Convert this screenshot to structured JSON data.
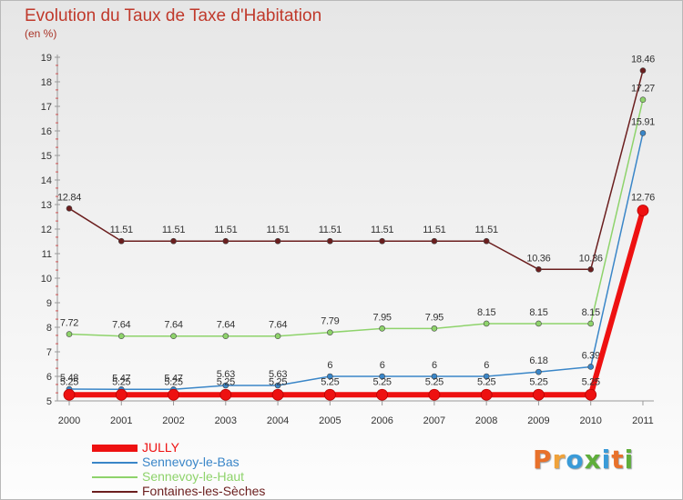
{
  "title": "Evolution du Taux de Taxe d'Habitation",
  "units_label": "(en %)",
  "chart_data": {
    "type": "line",
    "title": "Evolution du Taux de Taxe d'Habitation",
    "ylabel": "(en %)",
    "xlabel": "",
    "categories": [
      "2000",
      "2001",
      "2002",
      "2003",
      "2004",
      "2005",
      "2006",
      "2007",
      "2008",
      "2009",
      "2010",
      "2011"
    ],
    "ylim": [
      5,
      19
    ],
    "yticks": [
      5,
      6,
      7,
      8,
      9,
      10,
      11,
      12,
      13,
      14,
      15,
      16,
      17,
      18,
      19
    ],
    "grid": false,
    "series": [
      {
        "name": "Fontaines-les-Sèches",
        "color": "#6b1e1e",
        "values": [
          12.84,
          11.51,
          11.51,
          11.51,
          11.51,
          11.51,
          11.51,
          11.51,
          11.51,
          10.36,
          10.36,
          18.46
        ],
        "labels": [
          "12.84",
          "11.51",
          "11.51",
          "11.51",
          "11.51",
          "11.51",
          "11.51",
          "11.51",
          "11.51",
          "10.36",
          "10.36",
          "18.46"
        ]
      },
      {
        "name": "Sennevoy-le-Haut",
        "color": "#8ed36b",
        "values": [
          7.72,
          7.64,
          7.64,
          7.64,
          7.64,
          7.79,
          7.95,
          7.95,
          8.15,
          8.15,
          8.15,
          17.27
        ],
        "labels": [
          "7.72",
          "7.64",
          "7.64",
          "7.64",
          "7.64",
          "7.79",
          "7.95",
          "7.95",
          "8.15",
          "8.15",
          "8.15",
          "17.27"
        ]
      },
      {
        "name": "Sennevoy-le-Bas",
        "color": "#3a86c8",
        "values": [
          5.48,
          5.47,
          5.47,
          5.63,
          5.63,
          6,
          6,
          6,
          6,
          6.18,
          6.39,
          15.91
        ],
        "labels": [
          "5.48",
          "5.47",
          "5.47",
          "5.63",
          "5.63",
          "6",
          "6",
          "6",
          "6",
          "6.18",
          "6.39",
          "15.91"
        ]
      },
      {
        "name": "JULLY",
        "color": "#ee1111",
        "values": [
          5.25,
          5.25,
          5.25,
          5.25,
          5.25,
          5.25,
          5.25,
          5.25,
          5.25,
          5.25,
          5.25,
          12.76
        ],
        "labels": [
          "5.25",
          "5.25",
          "5.25",
          "5.25",
          "5.25",
          "5.25",
          "5.25",
          "5.25",
          "5.25",
          "5.25",
          "5.25",
          "12.76"
        ]
      }
    ]
  },
  "legend": [
    {
      "label": "JULLY",
      "color": "#ee1111",
      "emphasis": "thick"
    },
    {
      "label": "Sennevoy-le-Bas",
      "color": "#3a86c8",
      "emphasis": "thin"
    },
    {
      "label": "Sennevoy-le-Haut",
      "color": "#8ed36b",
      "emphasis": "thin"
    },
    {
      "label": "Fontaines-les-Sèches",
      "color": "#6b1e1e",
      "emphasis": "thin"
    }
  ],
  "logo": {
    "text": "Proxiti",
    "colors": [
      "#e8712b",
      "#f0a23a",
      "#3a9bd8",
      "#5fae3b",
      "#3a9bd8",
      "#e8712b",
      "#5fae3b"
    ]
  }
}
